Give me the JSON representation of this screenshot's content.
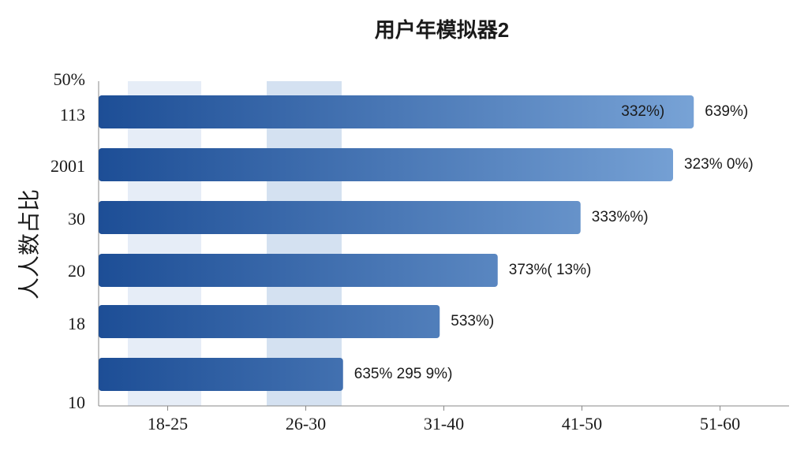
{
  "chart_data": {
    "type": "bar",
    "orientation": "horizontal",
    "title": "用户年模拟器2",
    "ylabel": "人人数占比",
    "ytick_labels": [
      "50%",
      "113",
      "2001",
      "30",
      "20",
      "18",
      "10"
    ],
    "values": [
      4.31,
      4.16,
      3.49,
      2.89,
      2.47,
      1.77
    ],
    "bar_labels": [
      [
        "332%)",
        "639%)"
      ],
      [
        "323% 0%)"
      ],
      [
        "333%%)"
      ],
      [
        "373%( 13%)"
      ],
      [
        "533%)"
      ],
      [
        "635% 295 9%)"
      ]
    ],
    "colors": [
      "#1d4e96",
      "#86b0e0"
    ],
    "xlim": [
      0,
      5
    ],
    "xticks": [
      {
        "value": 0.5,
        "label": "18-25"
      },
      {
        "value": 1.5,
        "label": "26-30"
      },
      {
        "value": 2.5,
        "label": "31-40"
      },
      {
        "value": 3.5,
        "label": "41-50"
      },
      {
        "value": 4.5,
        "label": "51-60"
      }
    ]
  }
}
